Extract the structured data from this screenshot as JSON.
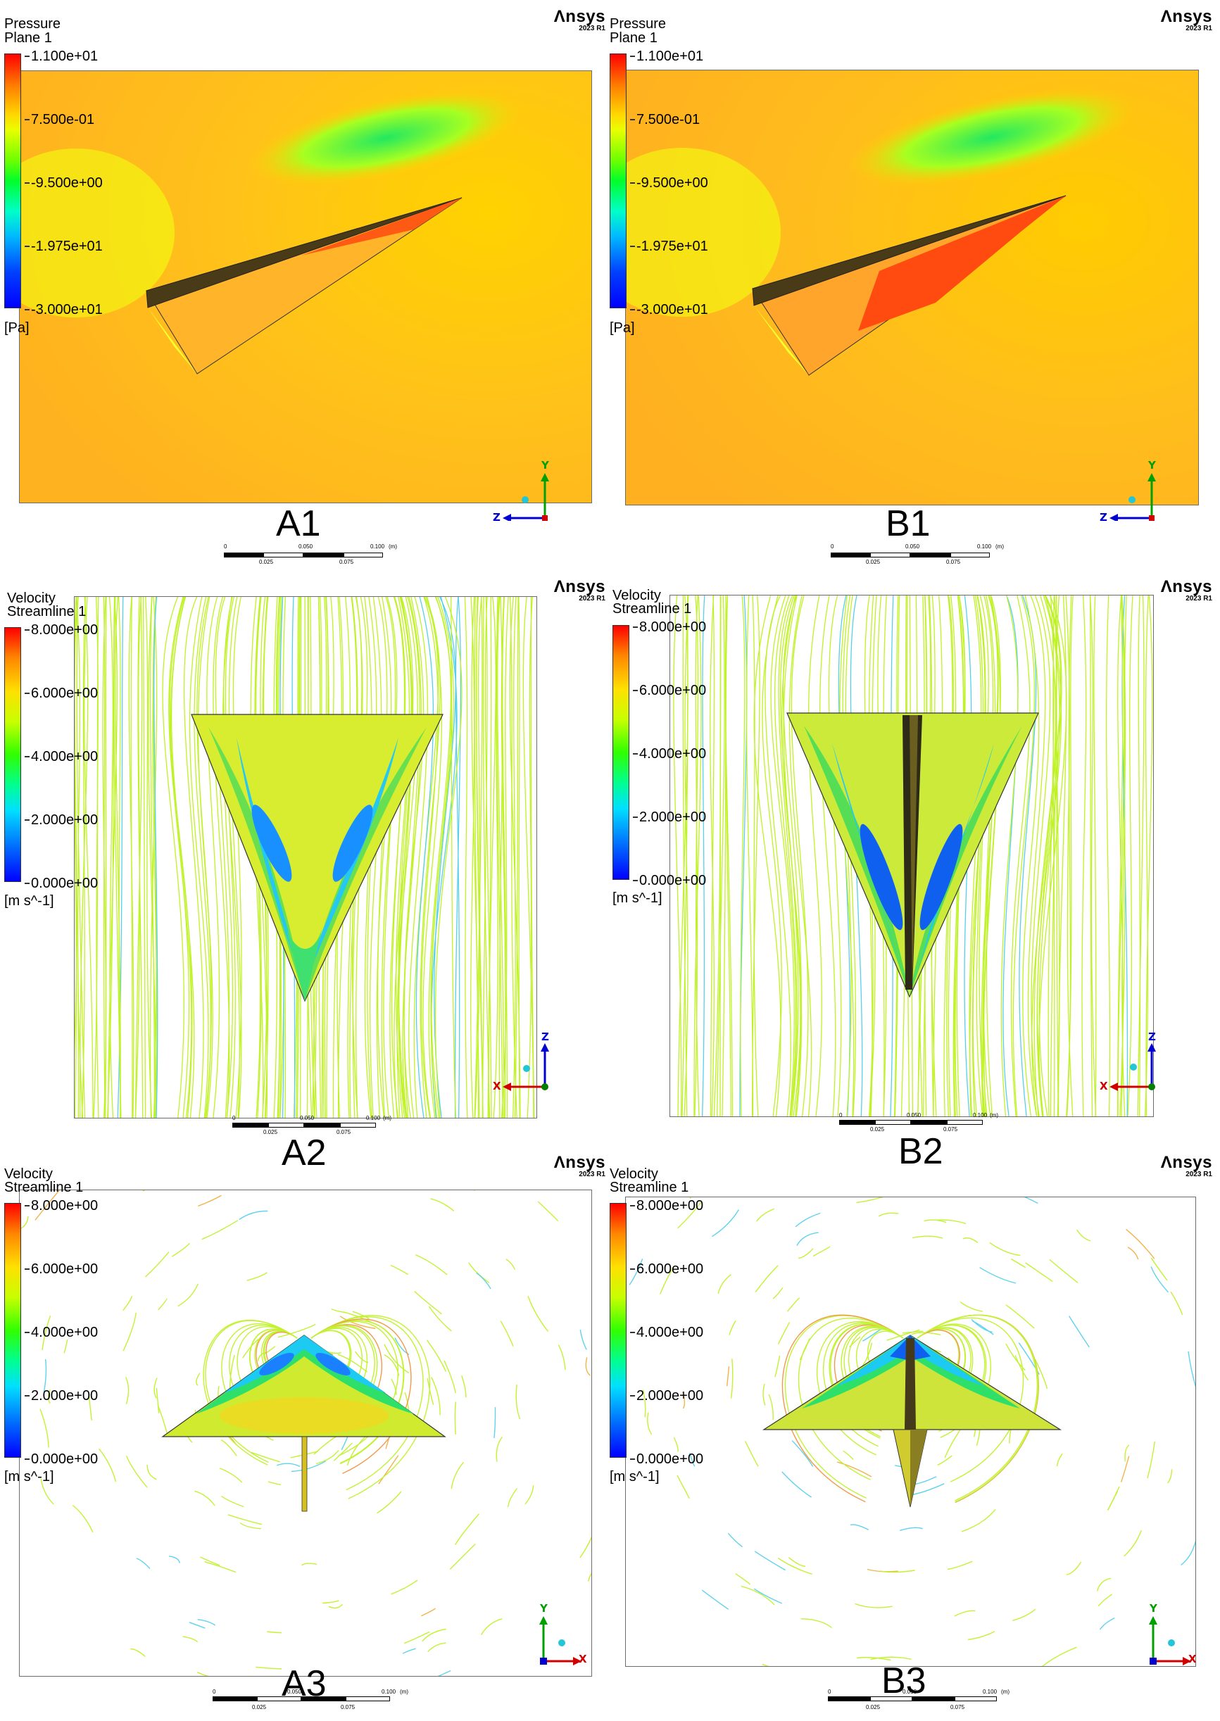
{
  "brand": {
    "name": "Λnsys",
    "version": "2023 R1"
  },
  "panels": [
    {
      "id": "A1",
      "label": "A1",
      "legend_title": "Pressure",
      "legend_subtitle": "Plane 1",
      "ticks": [
        "1.100e+01",
        "7.500e-01",
        "-9.500e+00",
        "-1.975e+01",
        "-3.000e+01"
      ],
      "units": "[Pa]",
      "axes": {
        "horizontal": "Z",
        "vertical": "Y"
      }
    },
    {
      "id": "B1",
      "label": "B1",
      "legend_title": "Pressure",
      "legend_subtitle": "Plane 1",
      "ticks": [
        "1.100e+01",
        "7.500e-01",
        "-9.500e+00",
        "-1.975e+01",
        "-3.000e+01"
      ],
      "units": "[Pa]",
      "axes": {
        "horizontal": "Z",
        "vertical": "Y"
      }
    },
    {
      "id": "A2",
      "label": "A2",
      "legend_title": "Velocity",
      "legend_subtitle": "Streamline 1",
      "ticks": [
        "8.000e+00",
        "6.000e+00",
        "4.000e+00",
        "2.000e+00",
        "0.000e+00"
      ],
      "units": "[m s^-1]",
      "axes": {
        "horizontal": "X",
        "vertical": "Z"
      }
    },
    {
      "id": "B2",
      "label": "B2",
      "legend_title": "Velocity",
      "legend_subtitle": "Streamline 1",
      "ticks": [
        "8.000e+00",
        "6.000e+00",
        "4.000e+00",
        "2.000e+00",
        "0.000e+00"
      ],
      "units": "[m s^-1]",
      "axes": {
        "horizontal": "X",
        "vertical": "Z"
      }
    },
    {
      "id": "A3",
      "label": "A3",
      "legend_title": "Velocity",
      "legend_subtitle": "Streamline 1",
      "ticks": [
        "8.000e+00",
        "6.000e+00",
        "4.000e+00",
        "2.000e+00",
        "0.000e+00"
      ],
      "units": "[m s^-1]",
      "axes": {
        "horizontal": "X",
        "vertical": "Y"
      }
    },
    {
      "id": "B3",
      "label": "B3",
      "legend_title": "Velocity",
      "legend_subtitle": "Streamline 1",
      "ticks": [
        "8.000e+00",
        "6.000e+00",
        "4.000e+00",
        "2.000e+00",
        "0.000e+00"
      ],
      "units": "[m s^-1]",
      "axes": {
        "horizontal": "X",
        "vertical": "Y"
      }
    }
  ],
  "scale_bar": {
    "top_labels": [
      "0",
      "0.050",
      "0.100",
      "(m)"
    ],
    "bottom_labels": [
      "0.025",
      "0.075"
    ]
  },
  "colors": {
    "pressure_field": "#ffcf1a",
    "pressure_high": "#ff4a12",
    "pressure_low": "#4cff40",
    "streamline": "#b4f000",
    "panel_border": "#6b6b6b",
    "axis_x": "#d00000",
    "axis_y": "#00a000",
    "axis_z": "#0000d0"
  }
}
